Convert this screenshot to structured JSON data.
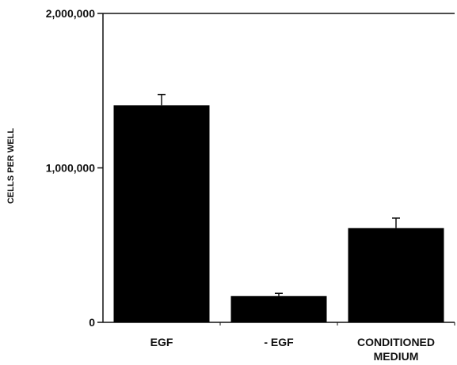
{
  "chart_data": {
    "type": "bar",
    "title": "",
    "xlabel": "",
    "ylabel": "CELLS PER WELL",
    "ylim": [
      0,
      2000000
    ],
    "yticks": [
      {
        "value": 0,
        "label": "0"
      },
      {
        "value": 1000000,
        "label": "1,000,000"
      },
      {
        "value": 2000000,
        "label": "2,000,000"
      }
    ],
    "categories": [
      [
        "EGF"
      ],
      [
        "- EGF"
      ],
      [
        "CONDITIONED",
        "MEDIUM"
      ]
    ],
    "values": [
      1405000,
      170000,
      610000
    ],
    "error_upper": [
      70000,
      18000,
      65000
    ],
    "grid": false,
    "legend": "none",
    "bar_color": "#000000",
    "axis_color": "#111111"
  }
}
